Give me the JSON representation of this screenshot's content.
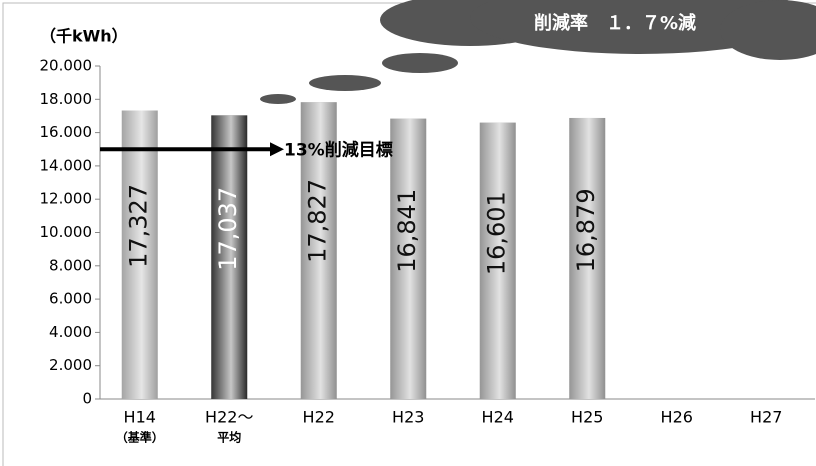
{
  "chart_data": {
    "type": "bar",
    "y_unit_label": "（千kWh）",
    "callout": "削減率　１．７%減",
    "categories": [
      "H14",
      "H22～",
      "H22",
      "H23",
      "H24",
      "H25",
      "H26",
      "H27"
    ],
    "category_sublabels": [
      "（基準）",
      "平均",
      null,
      null,
      null,
      null,
      null,
      null
    ],
    "values": [
      17327,
      17037,
      17827,
      16841,
      16601,
      16879,
      null,
      null
    ],
    "value_labels": [
      "17,327",
      "17,037",
      "17,827",
      "16,841",
      "16,601",
      "16,879",
      null,
      null
    ],
    "colors": [
      "#9a9a9a",
      "#1e1e1e",
      "#8a8a8a",
      "#8a8a8a",
      "#8a8a8a",
      "#8a8a8a",
      "#8a8a8a",
      "#8a8a8a"
    ],
    "target": {
      "value": 15000,
      "label": "13%削減目標"
    },
    "ylim": [
      0,
      20000
    ],
    "yticks": [
      0,
      {
        "value": 2000,
        "label": "2.000"
      },
      {
        "value": 4000,
        "label": "4.000"
      },
      {
        "value": 6000,
        "label": "6.000"
      },
      {
        "value": 8000,
        "label": "8.000"
      },
      {
        "value": 10000,
        "label": "10.000"
      },
      {
        "value": 12000,
        "label": "12.000"
      },
      {
        "value": 14000,
        "label": "14.000"
      },
      {
        "value": 16000,
        "label": "16.000"
      },
      {
        "value": 18000,
        "label": "18.000"
      },
      {
        "value": 20000,
        "label": "20.000"
      }
    ]
  }
}
